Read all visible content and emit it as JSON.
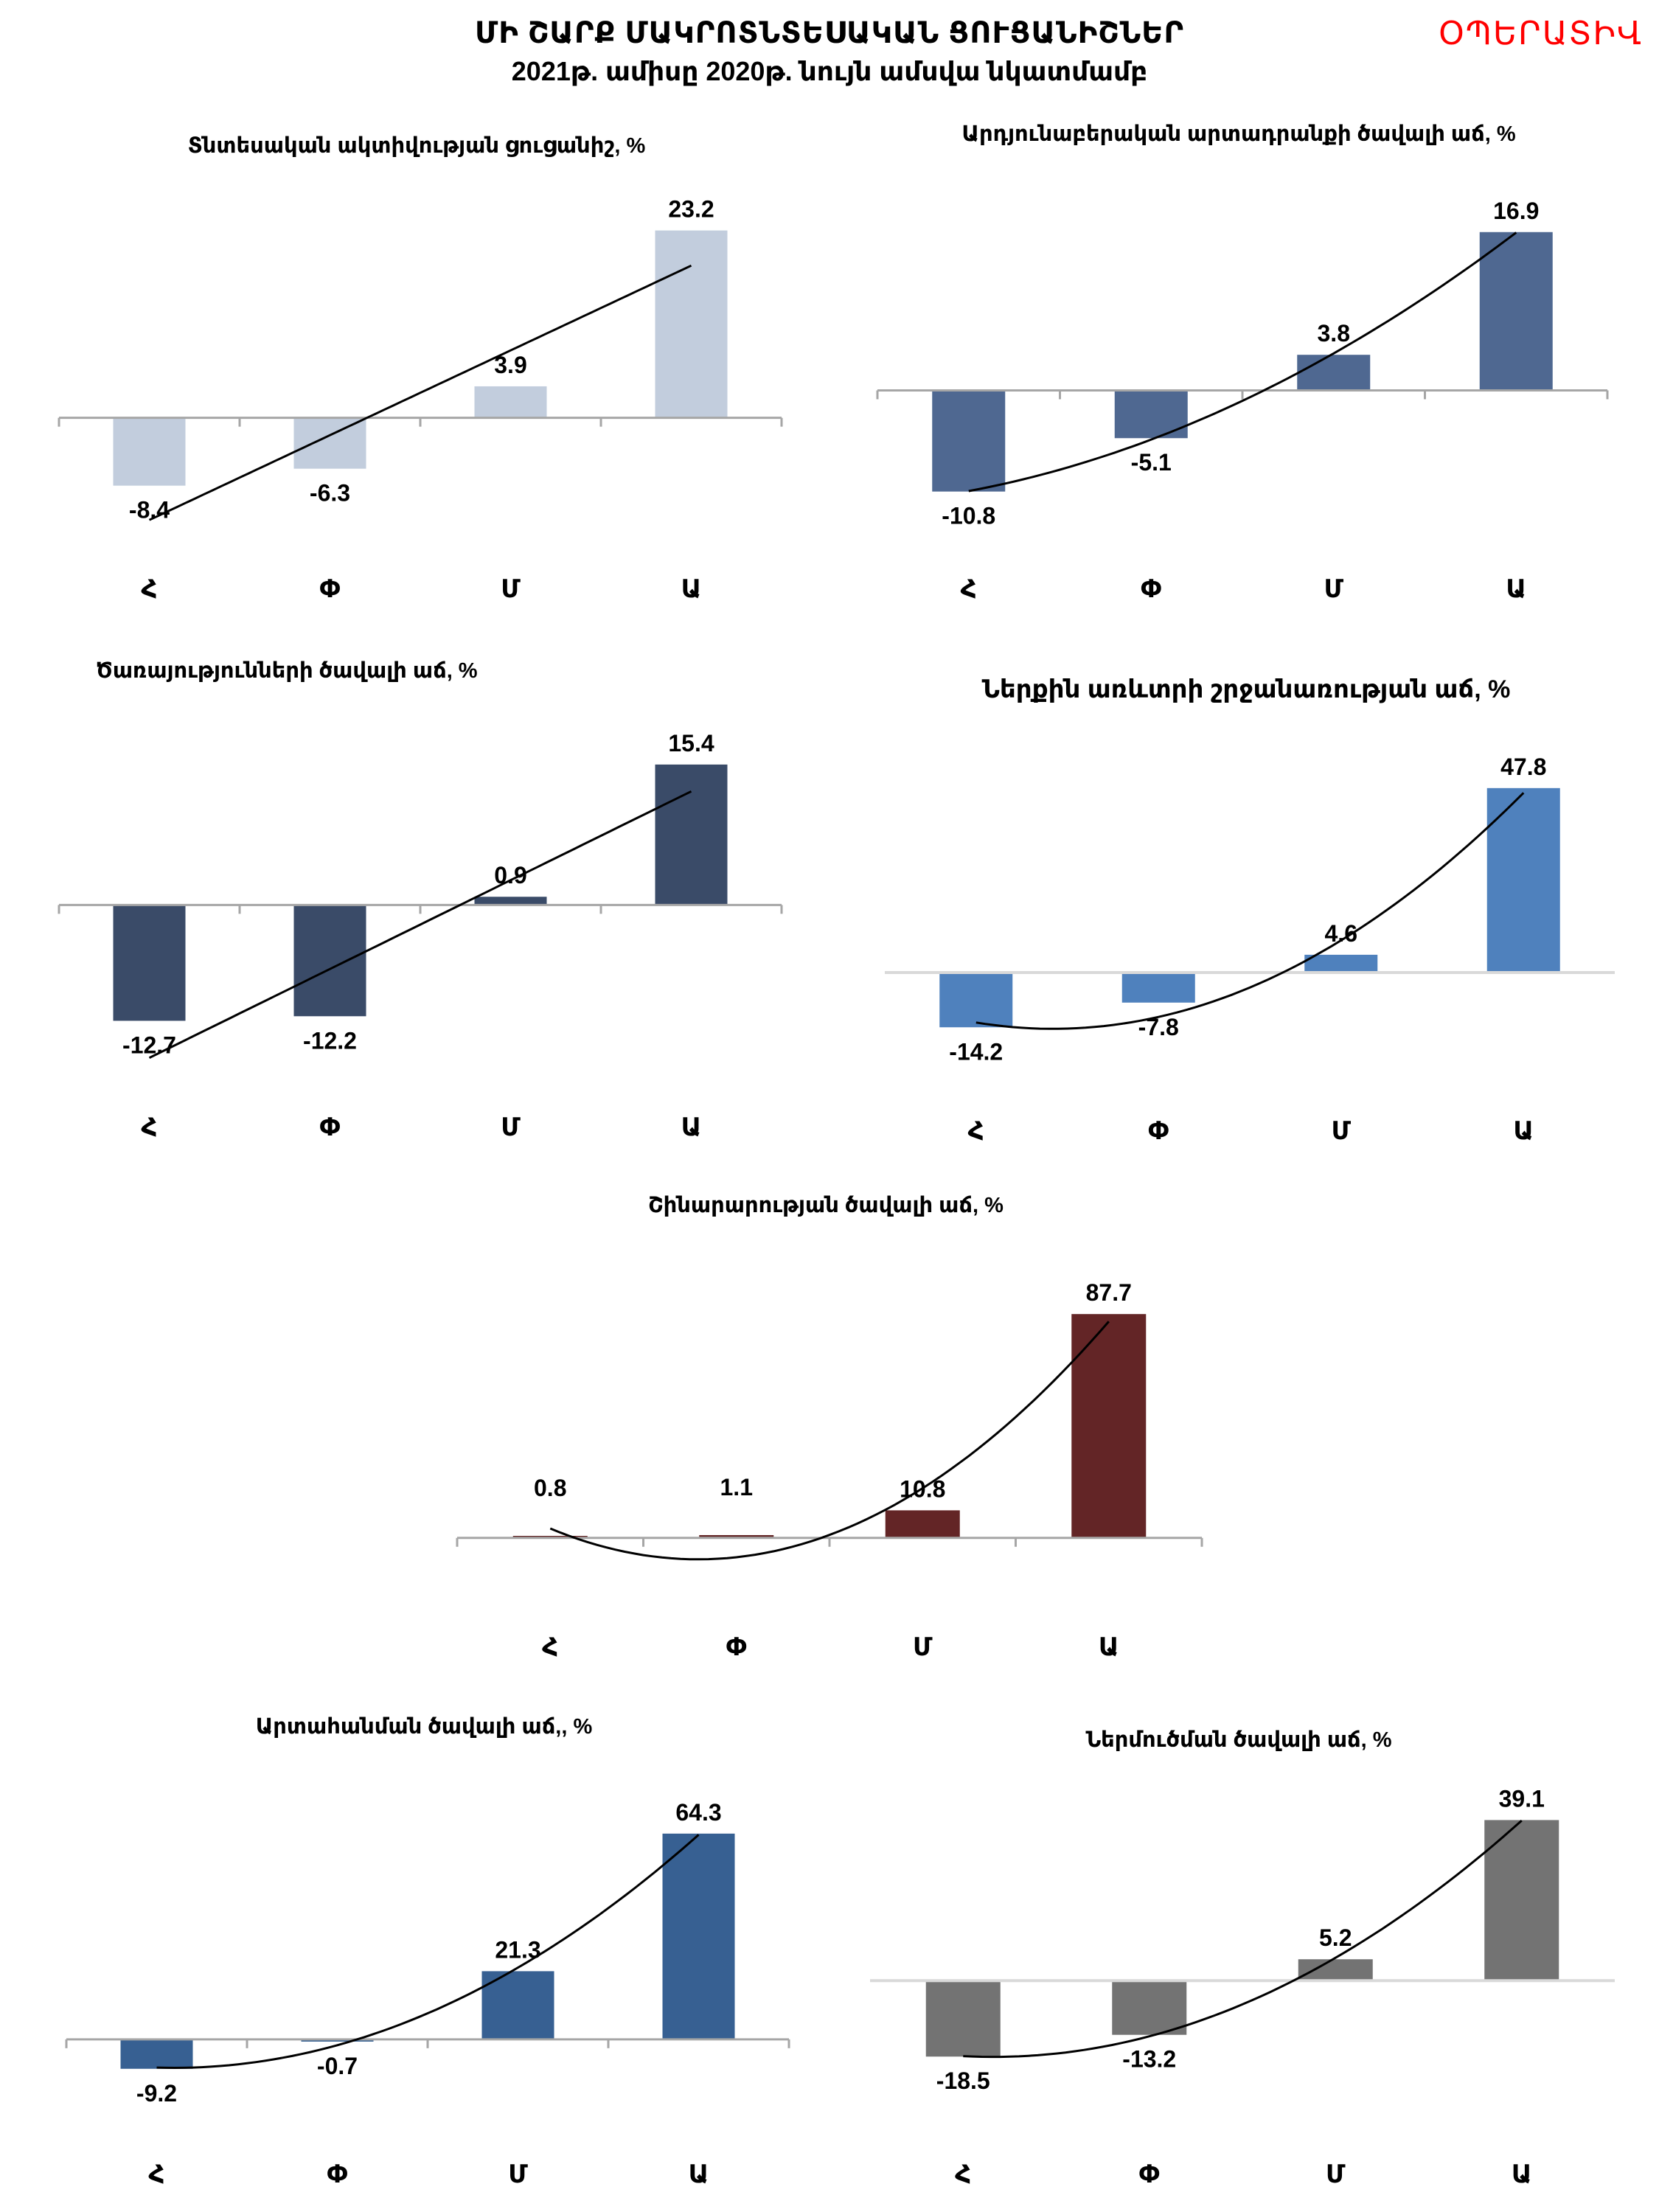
{
  "header": {
    "title": "ՄԻ ՇԱՐՔ ՄԱԿՐՈՏՆՏԵՍԱԿԱՆ ՑՈՒՑԱՆԻՇՆԵՐ",
    "subtitle": "2021թ. ամիսը 2020թ. նույն ամսվա նկատմամբ",
    "badge": "ՕՊԵՐԱՏԻՎ",
    "badge_color": "#ff0000"
  },
  "chart_data": [
    {
      "id": "economic-activity",
      "type": "bar",
      "title": "Տնտեսական ակտիվության ցուցանիշ, %",
      "categories": [
        "Հ",
        "Փ",
        "Մ",
        "Ա"
      ],
      "values": [
        -8.4,
        -6.3,
        3.9,
        23.2
      ],
      "value_labels": [
        "-8.4",
        "-6.3",
        "3.9",
        "23.2"
      ],
      "ylim": [
        -14,
        28
      ],
      "color": "#c2cddd",
      "trendline": "linear",
      "grid": false,
      "legend": "none"
    },
    {
      "id": "industrial-output",
      "type": "bar",
      "title": "Արդյունաբերական արտադրանքի ծավալի աճ, %",
      "categories": [
        "Հ",
        "Փ",
        "Մ",
        "Ա"
      ],
      "values": [
        -10.8,
        -5.1,
        3.8,
        16.9
      ],
      "value_labels": [
        "-10.8",
        "-5.1",
        "3.8",
        "16.9"
      ],
      "ylim": [
        -15,
        22
      ],
      "color": "#4f6891",
      "trendline": "polynomial",
      "grid": false,
      "legend": "none"
    },
    {
      "id": "services",
      "type": "bar",
      "title": "Ծառայությունների ծավալի աճ, %",
      "categories": [
        "Հ",
        "Փ",
        "Մ",
        "Ա"
      ],
      "values": [
        -12.7,
        -12.2,
        0.9,
        15.4
      ],
      "value_labels": [
        "-12.7",
        "-12.2",
        "0.9",
        "15.4"
      ],
      "ylim": [
        -18,
        20
      ],
      "color": "#3a4b68",
      "trendline": "linear",
      "grid": false,
      "legend": "none"
    },
    {
      "id": "domestic-trade",
      "type": "bar",
      "title": "Ներքին առևտրի շրջանառության աճ, %",
      "categories": [
        "Հ",
        "Փ",
        "Մ",
        "Ա"
      ],
      "values": [
        -14.2,
        -7.8,
        4.6,
        47.8
      ],
      "value_labels": [
        "-14.2",
        "-7.8",
        "4.6",
        "47.8"
      ],
      "ylim": [
        -26,
        60
      ],
      "color": "#4f81bd",
      "trendline": "polynomial",
      "grid": false,
      "legend": "none"
    },
    {
      "id": "construction",
      "type": "bar",
      "title": "Շինարարության ծավալի աճ, %",
      "categories": [
        "Հ",
        "Փ",
        "Մ",
        "Ա"
      ],
      "values": [
        0.8,
        1.1,
        10.8,
        87.7
      ],
      "value_labels": [
        "0.8",
        "1.1",
        "10.8",
        "87.7"
      ],
      "ylim": [
        -20,
        110
      ],
      "color": "#632526",
      "trendline": "polynomial",
      "grid": false,
      "legend": "none"
    },
    {
      "id": "exports",
      "type": "bar",
      "title": "Արտահանման ծավալի աճ,, %",
      "categories": [
        "Հ",
        "Փ",
        "Մ",
        "Ա"
      ],
      "values": [
        -9.2,
        -0.7,
        21.3,
        64.3
      ],
      "value_labels": [
        "-9.2",
        "-0.7",
        "21.3",
        "64.3"
      ],
      "ylim": [
        -24,
        82
      ],
      "color": "#376092",
      "trendline": "polynomial",
      "grid": false,
      "legend": "none"
    },
    {
      "id": "imports",
      "type": "bar",
      "title": "Ներմուծման ծավալի աճ, %",
      "categories": [
        "Հ",
        "Փ",
        "Մ",
        "Ա"
      ],
      "values": [
        -18.5,
        -13.2,
        5.2,
        39.1
      ],
      "value_labels": [
        "-18.5",
        "-13.2",
        "5.2",
        "39.1"
      ],
      "ylim": [
        -33,
        46
      ],
      "color": "#737373",
      "trendline": "polynomial",
      "grid": false,
      "legend": "none"
    }
  ]
}
